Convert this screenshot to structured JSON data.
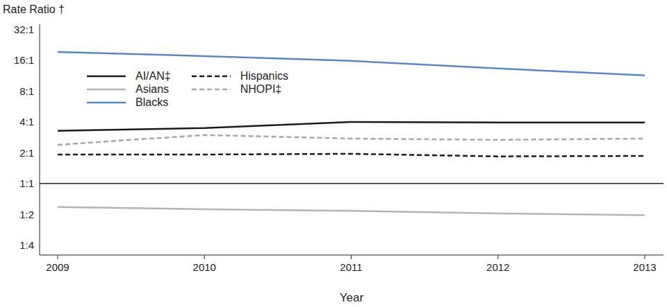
{
  "chart_data": {
    "type": "line",
    "y_label": "Rate Ratio †",
    "x_label": "Year",
    "categories": [
      "2009",
      "2010",
      "2011",
      "2012",
      "2013"
    ],
    "log": "y",
    "ylim": [
      0.2,
      36
    ],
    "yticks": [
      {
        "value": 0.25,
        "label": "1:4"
      },
      {
        "value": 0.5,
        "label": "1:2"
      },
      {
        "value": 1,
        "label": "1:1"
      },
      {
        "value": 2,
        "label": "2:1"
      },
      {
        "value": 4,
        "label": "4:1"
      },
      {
        "value": 8,
        "label": "8:1"
      },
      {
        "value": 16,
        "label": "16:1"
      },
      {
        "value": 32,
        "label": "32:1"
      }
    ],
    "reference_line": 1,
    "legend": "top-left",
    "series": [
      {
        "name": "AI/AN‡",
        "color": "#1a1a1a",
        "line_style": "solid",
        "values": [
          3.27,
          3.48,
          4.0,
          3.94,
          3.94
        ]
      },
      {
        "name": "Asians",
        "color": "#b3b3b3",
        "line_style": "solid",
        "values": [
          0.59,
          0.56,
          0.54,
          0.51,
          0.49
        ]
      },
      {
        "name": "Blacks",
        "color": "#5b87c0",
        "line_style": "solid",
        "values": [
          19.3,
          17.6,
          15.8,
          13.3,
          11.4
        ]
      },
      {
        "name": "Hispanics",
        "color": "#1a1a1a",
        "line_style": "dashed",
        "values": [
          1.92,
          1.92,
          1.95,
          1.84,
          1.86
        ]
      },
      {
        "name": "NHOPI‡",
        "color": "#a6a6a6",
        "line_style": "dashed",
        "values": [
          2.39,
          2.98,
          2.75,
          2.67,
          2.75
        ]
      }
    ]
  }
}
